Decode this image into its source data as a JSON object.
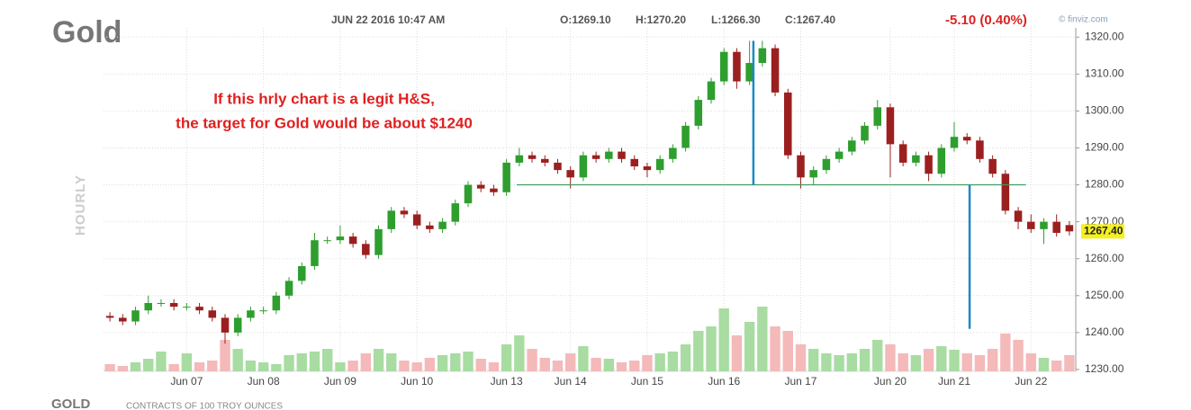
{
  "chart_data": {
    "type": "candlestick",
    "title": "Gold",
    "timestamp": "JUN 22 2016 10:47 AM",
    "quote": {
      "open": "O:1269.10",
      "high": "H:1270.20",
      "low": "L:1266.30",
      "close": "C:1267.40"
    },
    "change": "-5.10 (0.40%)",
    "source": "© finviz.com",
    "y_label": "HOURLY",
    "symbol": "GOLD",
    "contract_note": "CONTRACTS OF 100 TROY OUNCES",
    "annotation": [
      "If this hrly chart is a legit H&S,",
      "the target for Gold would be about $1240"
    ],
    "annotation_color": "#e02020",
    "last_price": {
      "value": 1267.4,
      "label": "1267.40"
    },
    "up_color": "#2e9e2e",
    "down_color": "#9c1f1f",
    "volume_up_color": "#a8dca2",
    "volume_down_color": "#f4b9b9",
    "grid": true,
    "ylim": [
      1229.5,
      1322.5
    ],
    "yticks": [
      {
        "value": 1230,
        "label": "1230.00"
      },
      {
        "value": 1240,
        "label": "1240.00"
      },
      {
        "value": 1250,
        "label": "1250.00"
      },
      {
        "value": 1260,
        "label": "1260.00"
      },
      {
        "value": 1270,
        "label": "1270.00"
      },
      {
        "value": 1280,
        "label": "1280.00"
      },
      {
        "value": 1290,
        "label": "1290.00"
      },
      {
        "value": 1300,
        "label": "1300.00"
      },
      {
        "value": 1310,
        "label": "1310.00"
      },
      {
        "value": 1320,
        "label": "1320.00"
      }
    ],
    "categories": [
      null,
      null,
      null,
      null,
      null,
      null,
      "Jun 07",
      null,
      null,
      null,
      null,
      null,
      "Jun 08",
      null,
      null,
      null,
      null,
      null,
      "Jun 09",
      null,
      null,
      null,
      null,
      null,
      "Jun 10",
      null,
      null,
      null,
      null,
      null,
      null,
      "Jun 13",
      null,
      null,
      null,
      null,
      "Jun 14",
      null,
      null,
      null,
      null,
      null,
      "Jun 15",
      null,
      null,
      null,
      null,
      null,
      "Jun 16",
      null,
      null,
      null,
      null,
      null,
      "Jun 17",
      null,
      null,
      null,
      null,
      null,
      null,
      "Jun 20",
      null,
      null,
      null,
      null,
      "Jun 21",
      null,
      null,
      null,
      null,
      null,
      "Jun 22",
      null,
      null,
      null
    ],
    "open": [
      1244.5,
      1244,
      1243,
      1246,
      1248,
      1248,
      1247,
      1247,
      1246,
      1244,
      1240,
      1244,
      1246,
      1246,
      1250,
      1254,
      1258,
      1265,
      1265,
      1266,
      1264,
      1261,
      1268,
      1273,
      1272,
      1269,
      1268,
      1270,
      1275,
      1280,
      1279,
      1278,
      1286,
      1288,
      1287,
      1286,
      1284,
      1282,
      1288,
      1287,
      1289,
      1287,
      1285,
      1284,
      1287,
      1290,
      1296,
      1303,
      1308,
      1316,
      1308,
      1313,
      1317,
      1305,
      1288,
      1282,
      1284,
      1287,
      1289,
      1292,
      1296,
      1301,
      1291,
      1286,
      1288,
      1283,
      1290,
      1293,
      1292,
      1287,
      1283,
      1273,
      1270,
      1268,
      1270,
      1269.1
    ],
    "high": [
      1245.5,
      1245,
      1247,
      1250,
      1249,
      1249,
      1248,
      1248,
      1247,
      1245,
      1245,
      1247,
      1247,
      1251,
      1255,
      1259,
      1267,
      1266,
      1269,
      1267,
      1265,
      1269,
      1274,
      1274,
      1273,
      1270,
      1271,
      1276,
      1281,
      1281,
      1280,
      1287,
      1290,
      1289,
      1288,
      1287,
      1285,
      1289,
      1289,
      1290,
      1290,
      1288,
      1286,
      1288,
      1291,
      1297,
      1304,
      1309,
      1317,
      1317,
      1319,
      1319,
      1318,
      1306,
      1289,
      1285,
      1288,
      1290,
      1293,
      1297,
      1303,
      1302,
      1292,
      1289,
      1289,
      1291,
      1297,
      1294,
      1293,
      1288,
      1284,
      1274,
      1272,
      1271,
      1272,
      1270.2
    ],
    "low": [
      1243,
      1242,
      1242,
      1245,
      1247,
      1246,
      1246,
      1245,
      1243,
      1237,
      1239,
      1243,
      1245,
      1245,
      1249,
      1253,
      1257,
      1264,
      1264,
      1263,
      1260,
      1260,
      1267,
      1271,
      1268,
      1267,
      1267,
      1269,
      1274,
      1278,
      1277,
      1277,
      1285,
      1286,
      1285,
      1283,
      1279,
      1281,
      1286,
      1286,
      1286,
      1284,
      1282,
      1283,
      1286,
      1289,
      1295,
      1302,
      1307,
      1306,
      1307,
      1312,
      1304,
      1287,
      1279,
      1280,
      1283,
      1286,
      1288,
      1291,
      1295,
      1282,
      1285,
      1285,
      1281,
      1282,
      1289,
      1291,
      1286,
      1282,
      1272,
      1268,
      1267,
      1264,
      1266,
      1266.3
    ],
    "close": [
      1244,
      1243,
      1246,
      1248,
      1248,
      1247,
      1247,
      1246,
      1244,
      1240,
      1244,
      1246,
      1246,
      1250,
      1254,
      1258,
      1265,
      1265,
      1266,
      1264,
      1261,
      1268,
      1273,
      1272,
      1269,
      1268,
      1270,
      1275,
      1280,
      1279,
      1278,
      1286,
      1288,
      1287,
      1286,
      1284,
      1282,
      1288,
      1287,
      1289,
      1287,
      1285,
      1284,
      1287,
      1290,
      1296,
      1303,
      1308,
      1316,
      1308,
      1313,
      1317,
      1305,
      1288,
      1282,
      1284,
      1287,
      1289,
      1292,
      1296,
      1301,
      1291,
      1286,
      1288,
      1283,
      1290,
      1293,
      1292,
      1287,
      1283,
      1273,
      1270,
      1268,
      1270,
      1267,
      1267.4
    ],
    "volume": [
      8,
      6,
      10,
      14,
      22,
      8,
      20,
      10,
      12,
      35,
      25,
      12,
      10,
      8,
      18,
      20,
      22,
      25,
      10,
      12,
      20,
      25,
      20,
      12,
      10,
      15,
      18,
      20,
      22,
      14,
      10,
      30,
      40,
      25,
      15,
      12,
      20,
      28,
      15,
      14,
      10,
      12,
      18,
      20,
      22,
      30,
      45,
      50,
      70,
      40,
      55,
      72,
      50,
      45,
      30,
      25,
      20,
      18,
      20,
      25,
      35,
      30,
      20,
      18,
      25,
      28,
      24,
      20,
      18,
      25,
      42,
      35,
      20,
      15,
      12,
      18
    ],
    "volume_lim": [
      0,
      100
    ],
    "shapes": [
      {
        "type": "hline",
        "y": 1280,
        "x": [
          31.8,
          71.6
        ],
        "color": "#3a9a5a"
      },
      {
        "type": "vline",
        "x": 50.3,
        "y": [
          1319,
          1280
        ],
        "color": "#1a8ac8"
      },
      {
        "type": "vline",
        "x": 67.2,
        "y": [
          1280,
          1241
        ],
        "color": "#1a8ac8"
      }
    ]
  }
}
